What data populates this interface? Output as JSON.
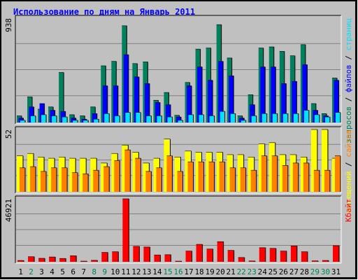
{
  "title": "Использование по дням на Январь 2011",
  "colors": {
    "hits": "#00805c",
    "files": "#0000ff",
    "pages": "#00e0ff",
    "visits": "#ffff00",
    "sites": "#ff8000",
    "kbytes": "#ff0000",
    "day_weekday": "#000000",
    "day_weekend": "#00805c"
  },
  "chart_data": [
    {
      "type": "bar",
      "panel": "hits-files-pages",
      "categories": [
        "1",
        "2",
        "3",
        "4",
        "5",
        "6",
        "7",
        "8",
        "9",
        "10",
        "11",
        "12",
        "13",
        "14",
        "15",
        "16",
        "17",
        "18",
        "19",
        "20",
        "21",
        "22",
        "23",
        "24",
        "25",
        "26",
        "27",
        "28",
        "29",
        "30",
        "31"
      ],
      "ymax_label": "938",
      "ylim": [
        0,
        938
      ],
      "legend": [
        "запросов",
        "файлов",
        "страниц"
      ],
      "series": [
        {
          "name": "запросов",
          "values": [
            60,
            230,
            120,
            140,
            450,
            70,
            60,
            140,
            510,
            550,
            870,
            530,
            545,
            200,
            270,
            65,
            360,
            660,
            670,
            880,
            580,
            60,
            250,
            670,
            680,
            640,
            600,
            700,
            170,
            80,
            400
          ]
        },
        {
          "name": "файлов",
          "values": [
            40,
            140,
            170,
            110,
            100,
            40,
            30,
            80,
            330,
            330,
            610,
            410,
            350,
            180,
            160,
            50,
            330,
            500,
            380,
            550,
            420,
            40,
            160,
            500,
            500,
            350,
            370,
            520,
            110,
            60,
            380
          ]
        },
        {
          "name": "страниц",
          "values": [
            20,
            60,
            70,
            60,
            50,
            20,
            20,
            30,
            80,
            60,
            90,
            90,
            60,
            60,
            50,
            20,
            70,
            70,
            60,
            100,
            80,
            20,
            60,
            80,
            80,
            80,
            80,
            110,
            70,
            50,
            90
          ]
        }
      ]
    },
    {
      "type": "bar",
      "panel": "visits-sites",
      "categories": [
        "1",
        "2",
        "3",
        "4",
        "5",
        "6",
        "7",
        "8",
        "9",
        "10",
        "11",
        "12",
        "13",
        "14",
        "15",
        "16",
        "17",
        "18",
        "19",
        "20",
        "21",
        "22",
        "23",
        "24",
        "25",
        "26",
        "27",
        "28",
        "29",
        "30",
        "31"
      ],
      "ymax_label": "52",
      "ylim": [
        0,
        52
      ],
      "legend": [
        "посещений",
        "сайтов"
      ],
      "series": [
        {
          "name": "посещений",
          "values": [
            30,
            32,
            29,
            28,
            29,
            28,
            28,
            28,
            24,
            32,
            39,
            33,
            24,
            28,
            44,
            29,
            34,
            33,
            33,
            33,
            31,
            31,
            29,
            40,
            41,
            31,
            31,
            29,
            52,
            52,
            28
          ]
        },
        {
          "name": "сайтов",
          "values": [
            20,
            21,
            17,
            20,
            20,
            16,
            15,
            18,
            21,
            26,
            35,
            28,
            17,
            20,
            30,
            17,
            25,
            25,
            25,
            25,
            20,
            20,
            18,
            30,
            30,
            22,
            24,
            24,
            18,
            18,
            30
          ]
        }
      ]
    },
    {
      "type": "bar",
      "panel": "kbytes",
      "categories": [
        "1",
        "2",
        "3",
        "4",
        "5",
        "6",
        "7",
        "8",
        "9",
        "10",
        "11",
        "12",
        "13",
        "14",
        "15",
        "16",
        "17",
        "18",
        "19",
        "20",
        "21",
        "22",
        "23",
        "24",
        "25",
        "26",
        "27",
        "28",
        "29",
        "30",
        "31"
      ],
      "ymax_label": "46921",
      "ylim": [
        0,
        46921
      ],
      "legend": [
        "Кбайт"
      ],
      "series": [
        {
          "name": "Кбайт",
          "values": [
            1000,
            3800,
            2600,
            3600,
            2500,
            4500,
            500,
            1100,
            7000,
            7500,
            46921,
            11500,
            11000,
            5100,
            5300,
            500,
            8000,
            13000,
            9500,
            15000,
            8500,
            3200,
            600,
            10500,
            10000,
            8000,
            11800,
            7500,
            700,
            1000,
            12000
          ]
        }
      ]
    }
  ],
  "days": [
    {
      "label": "1",
      "weekend": false
    },
    {
      "label": "2",
      "weekend": true
    },
    {
      "label": "3",
      "weekend": false
    },
    {
      "label": "4",
      "weekend": false
    },
    {
      "label": "5",
      "weekend": false
    },
    {
      "label": "6",
      "weekend": false
    },
    {
      "label": "7",
      "weekend": false
    },
    {
      "label": "8",
      "weekend": true
    },
    {
      "label": "9",
      "weekend": true
    },
    {
      "label": "10",
      "weekend": false
    },
    {
      "label": "11",
      "weekend": false
    },
    {
      "label": "12",
      "weekend": false
    },
    {
      "label": "13",
      "weekend": false
    },
    {
      "label": "14",
      "weekend": false
    },
    {
      "label": "15",
      "weekend": true
    },
    {
      "label": "16",
      "weekend": true
    },
    {
      "label": "17",
      "weekend": false
    },
    {
      "label": "18",
      "weekend": false
    },
    {
      "label": "19",
      "weekend": false
    },
    {
      "label": "20",
      "weekend": false
    },
    {
      "label": "21",
      "weekend": false
    },
    {
      "label": "22",
      "weekend": true
    },
    {
      "label": "23",
      "weekend": true
    },
    {
      "label": "24",
      "weekend": false
    },
    {
      "label": "25",
      "weekend": false
    },
    {
      "label": "26",
      "weekend": false
    },
    {
      "label": "27",
      "weekend": false
    },
    {
      "label": "28",
      "weekend": false
    },
    {
      "label": "29",
      "weekend": true
    },
    {
      "label": "30",
      "weekend": true
    },
    {
      "label": "31",
      "weekend": false
    }
  ]
}
